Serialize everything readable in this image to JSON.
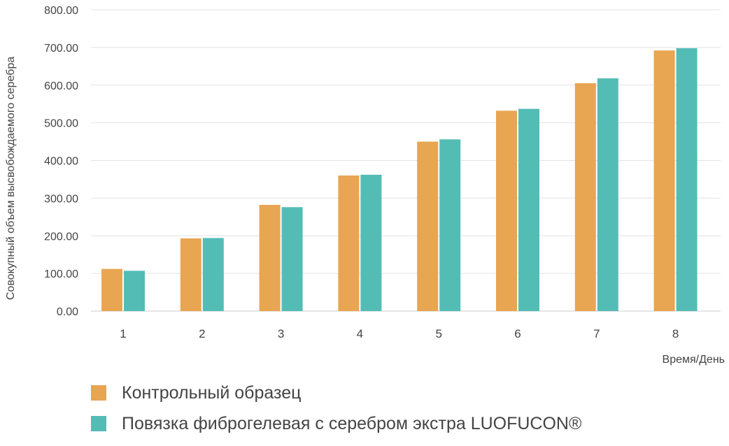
{
  "chart_data": {
    "type": "bar",
    "categories": [
      "1",
      "2",
      "3",
      "4",
      "5",
      "6",
      "7",
      "8"
    ],
    "series": [
      {
        "name": "Контрольный образец",
        "color": "#E8A552",
        "values": [
          112,
          193,
          282,
          360,
          450,
          532,
          605,
          692
        ]
      },
      {
        "name": "Повязка фиброгелевая с серебром экстра LUOFUCON®",
        "color": "#53BDB5",
        "values": [
          107,
          194,
          276,
          362,
          456,
          537,
          618,
          698
        ]
      }
    ],
    "xlabel": "Время/День",
    "ylabel": "Совокупный объем высвобождаемого серебра",
    "ylim": [
      0,
      800
    ],
    "yticks": [
      "0.00",
      "100.00",
      "200.00",
      "300.00",
      "400.00",
      "500.00",
      "600.00",
      "700.00",
      "800.00"
    ],
    "grid": true,
    "legend_position": "bottom-left"
  }
}
